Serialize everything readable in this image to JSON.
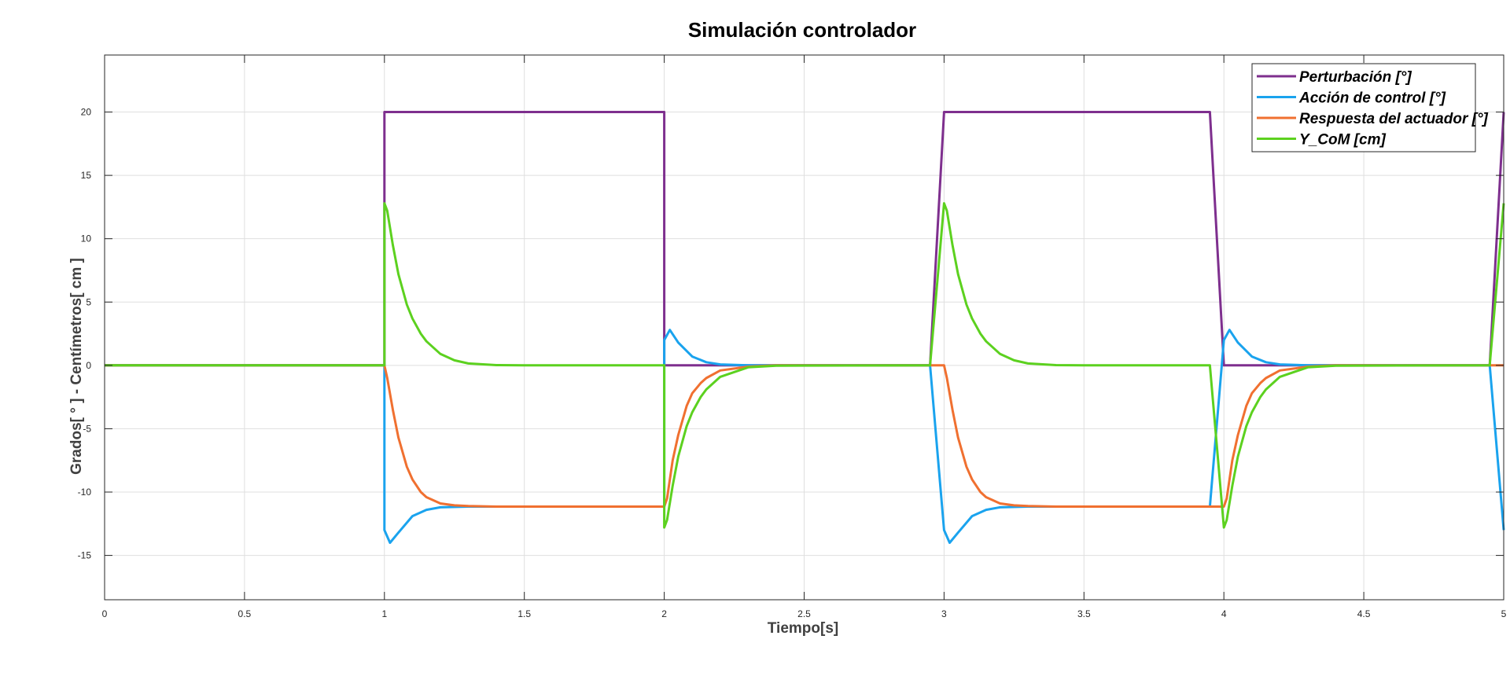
{
  "chart_data": {
    "type": "line",
    "title": "Simulación controlador",
    "xlabel": "Tiempo[s]",
    "ylabel": "Grados[ ° ] - Centímetros[ cm ]",
    "xlim": [
      0,
      5
    ],
    "ylim": [
      -18.5,
      24.5
    ],
    "xticks": [
      0,
      0.5,
      1,
      1.5,
      2,
      2.5,
      3,
      3.5,
      4,
      4.5,
      5
    ],
    "xtick_labels": [
      "0",
      "0.5",
      "1",
      "1.5",
      "2",
      "2.5",
      "3",
      "3.5",
      "4",
      "4.5",
      "5"
    ],
    "yticks": [
      -15,
      -10,
      -5,
      0,
      5,
      10,
      15,
      20
    ],
    "ytick_labels": [
      "-15",
      "-10",
      "-5",
      "0",
      "5",
      "10",
      "15",
      "20"
    ],
    "grid": true,
    "legend_position": "top-right",
    "series": [
      {
        "name": "Perturbación [°]",
        "color": "#7E2F8E",
        "x": [
          0,
          1.0,
          1.0,
          2.0,
          2.0,
          2.95,
          3.0,
          3.95,
          4.0,
          4.95,
          5.0
        ],
        "y": [
          0,
          0,
          20,
          20,
          0,
          0,
          20,
          20,
          0,
          0,
          20
        ]
      },
      {
        "name": "Acción de control [°]",
        "color": "#1AA3EE",
        "x": [
          0,
          1.0,
          1.0,
          1.02,
          1.05,
          1.1,
          1.15,
          1.2,
          1.3,
          1.4,
          2.0,
          2.0,
          2.02,
          2.05,
          2.1,
          2.15,
          2.2,
          2.3,
          2.95,
          3.0,
          3.02,
          3.05,
          3.1,
          3.15,
          3.2,
          3.3,
          3.4,
          3.95,
          4.0,
          4.02,
          4.05,
          4.1,
          4.15,
          4.2,
          4.3,
          4.95,
          5.0
        ],
        "y": [
          0,
          0,
          -13,
          -14,
          -13.2,
          -11.9,
          -11.4,
          -11.2,
          -11.15,
          -11.15,
          -11.15,
          2,
          2.8,
          1.8,
          0.7,
          0.25,
          0.08,
          0,
          0,
          -13,
          -14,
          -13.2,
          -11.9,
          -11.4,
          -11.2,
          -11.15,
          -11.15,
          -11.15,
          2,
          2.8,
          1.8,
          0.7,
          0.25,
          0.08,
          0,
          0,
          -13
        ]
      },
      {
        "name": "Respuesta del actuador [°]",
        "color": "#F07030",
        "x": [
          0,
          1.0,
          1.01,
          1.03,
          1.05,
          1.08,
          1.1,
          1.13,
          1.15,
          1.2,
          1.25,
          1.3,
          1.4,
          1.5,
          2.0,
          2.0,
          2.01,
          2.03,
          2.05,
          2.08,
          2.1,
          2.13,
          2.15,
          2.2,
          2.3,
          2.4,
          3.0,
          3.01,
          3.03,
          3.05,
          3.08,
          3.1,
          3.13,
          3.15,
          3.2,
          3.25,
          3.3,
          3.4,
          3.5,
          3.95,
          4.0,
          4.01,
          4.03,
          4.05,
          4.08,
          4.1,
          4.13,
          4.15,
          4.2,
          4.3,
          4.4,
          5.0
        ],
        "y": [
          0,
          0,
          -1,
          -3.5,
          -5.7,
          -8,
          -9,
          -10,
          -10.4,
          -10.9,
          -11.05,
          -11.1,
          -11.15,
          -11.15,
          -11.15,
          -11.15,
          -10.5,
          -7.5,
          -5.5,
          -3.2,
          -2.2,
          -1.4,
          -1,
          -0.4,
          -0.1,
          0,
          0,
          -1,
          -3.5,
          -5.7,
          -8,
          -9,
          -10,
          -10.4,
          -10.9,
          -11.05,
          -11.1,
          -11.15,
          -11.15,
          -11.15,
          -11.15,
          -10.5,
          -7.5,
          -5.5,
          -3.2,
          -2.2,
          -1.4,
          -1,
          -0.4,
          -0.1,
          0,
          0
        ]
      },
      {
        "name": "Y_CoM [cm]",
        "color": "#5CD11F",
        "x": [
          0,
          1.0,
          1.0,
          1.01,
          1.03,
          1.05,
          1.08,
          1.1,
          1.13,
          1.15,
          1.2,
          1.25,
          1.3,
          1.4,
          1.5,
          2.0,
          2.0,
          2.01,
          2.03,
          2.05,
          2.08,
          2.1,
          2.13,
          2.15,
          2.2,
          2.3,
          2.4,
          2.95,
          3.0,
          3.01,
          3.03,
          3.05,
          3.08,
          3.1,
          3.13,
          3.15,
          3.2,
          3.25,
          3.3,
          3.4,
          3.5,
          3.95,
          4.0,
          4.01,
          4.03,
          4.05,
          4.08,
          4.1,
          4.13,
          4.15,
          4.2,
          4.3,
          4.4,
          4.95,
          5.0
        ],
        "y": [
          0,
          0,
          12.8,
          12.2,
          9.5,
          7.2,
          4.8,
          3.7,
          2.5,
          1.9,
          0.9,
          0.4,
          0.15,
          0.02,
          0,
          0,
          -12.8,
          -12.2,
          -9.5,
          -7.2,
          -4.8,
          -3.7,
          -2.5,
          -1.9,
          -0.9,
          -0.15,
          -0.02,
          0,
          12.8,
          12.2,
          9.5,
          7.2,
          4.8,
          3.7,
          2.5,
          1.9,
          0.9,
          0.4,
          0.15,
          0.02,
          0,
          0,
          -12.8,
          -12.2,
          -9.5,
          -7.2,
          -4.8,
          -3.7,
          -2.5,
          -1.9,
          -0.9,
          -0.15,
          -0.02,
          0,
          12.8
        ]
      }
    ]
  }
}
